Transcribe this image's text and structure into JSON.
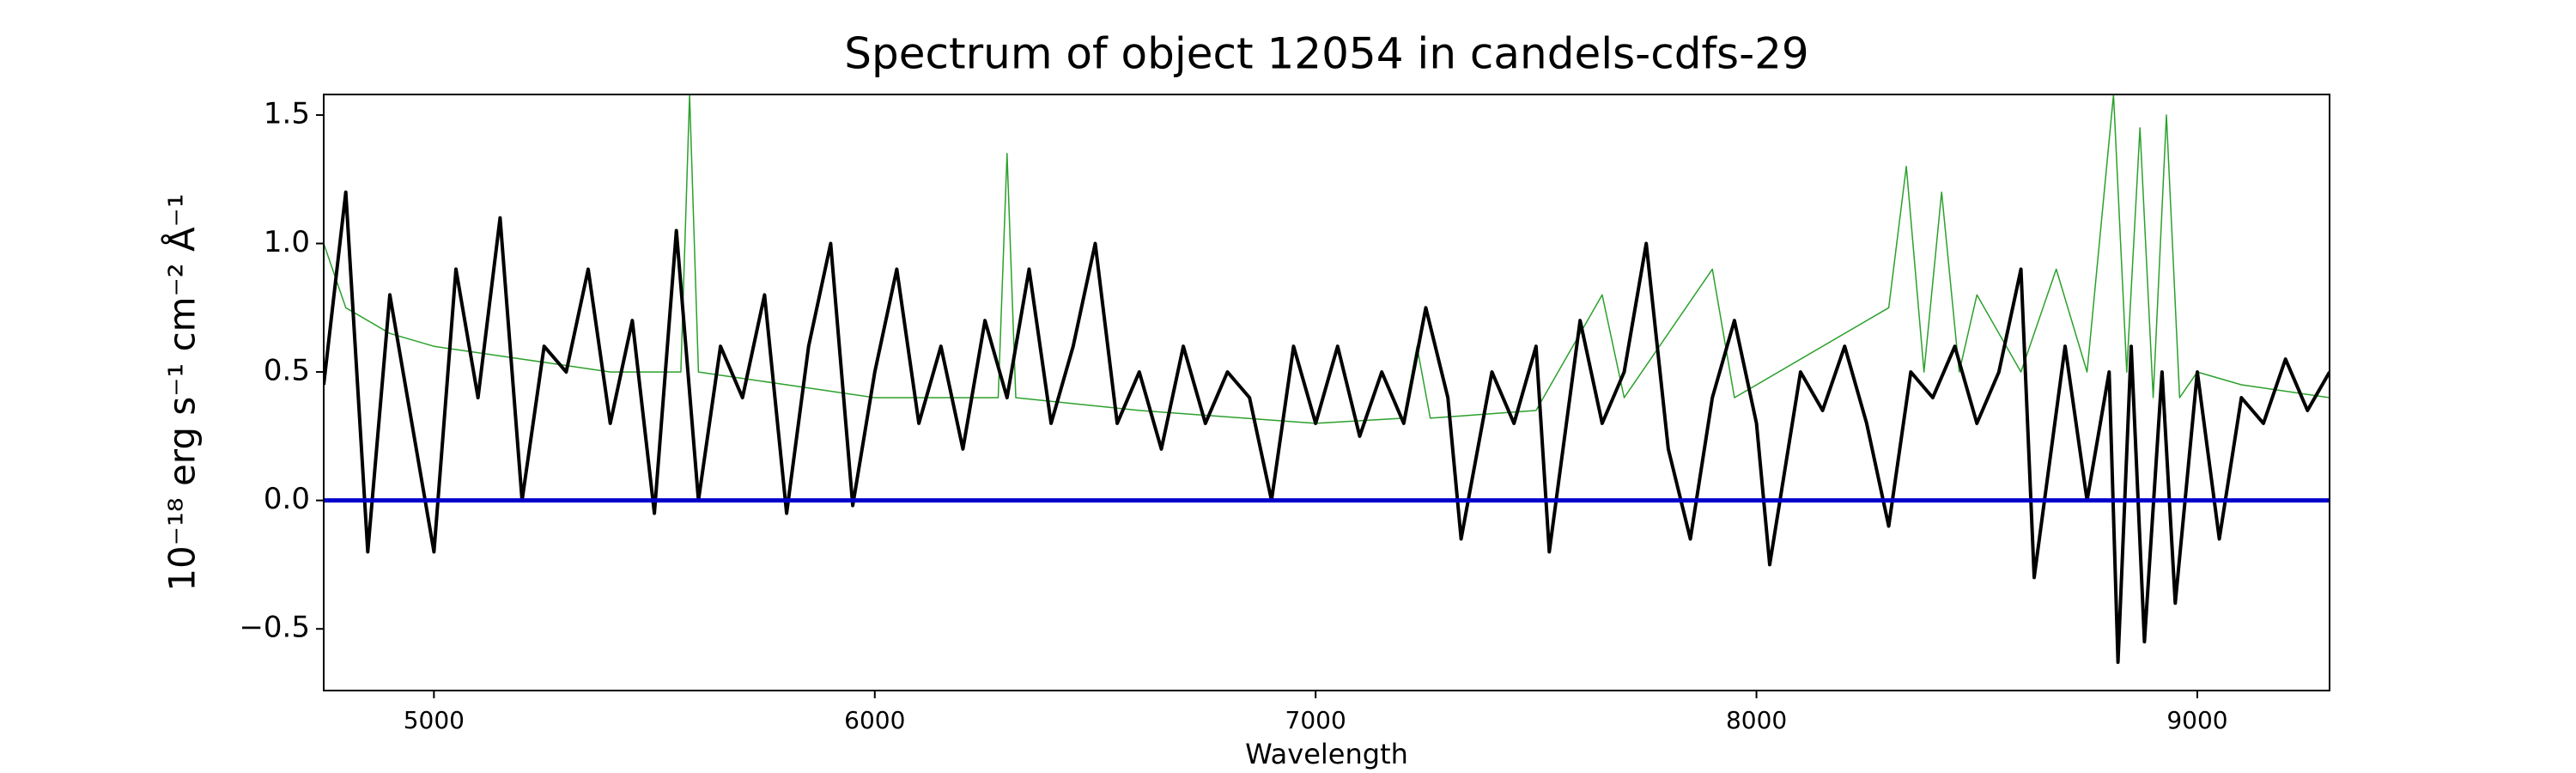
{
  "chart_data": {
    "type": "line",
    "title": "Spectrum of object 12054 in candels-cdfs-29",
    "x_label": "Wavelength",
    "y_label": "10⁻¹⁸ erg s⁻¹ cm⁻² Å⁻¹",
    "xlim": [
      4750,
      9300
    ],
    "ylim": [
      -0.74,
      1.58
    ],
    "xticks": [
      5000,
      6000,
      7000,
      8000,
      9000
    ],
    "yticks": [
      {
        "value": -0.5,
        "label": "−0.5"
      },
      {
        "value": 0,
        "label": "0.0"
      },
      {
        "value": 0.5,
        "label": "0.5"
      },
      {
        "value": 1,
        "label": "1.0"
      },
      {
        "value": 1.5,
        "label": "1.5"
      }
    ],
    "series": [
      {
        "color": "#2ca02c",
        "width": 1.5,
        "x": [
          4750,
          4800,
          4900,
          5000,
          5200,
          5400,
          5560,
          5580,
          5600,
          5800,
          6000,
          6280,
          6300,
          6320,
          6600,
          7000,
          7200,
          7230,
          7260,
          7500,
          7650,
          7700,
          7900,
          7950,
          8300,
          8340,
          8380,
          8420,
          8460,
          8500,
          8600,
          8680,
          8750,
          8810,
          8840,
          8870,
          8900,
          8930,
          8960,
          9000,
          9100,
          9300
        ],
        "values": [
          1.0,
          0.75,
          0.65,
          0.6,
          0.55,
          0.5,
          0.5,
          1.58,
          0.5,
          0.45,
          0.4,
          0.4,
          1.35,
          0.4,
          0.35,
          0.3,
          0.32,
          0.6,
          0.32,
          0.35,
          0.8,
          0.4,
          0.9,
          0.4,
          0.75,
          1.3,
          0.5,
          1.2,
          0.5,
          0.8,
          0.5,
          0.9,
          0.5,
          1.58,
          0.5,
          1.45,
          0.4,
          1.5,
          0.4,
          0.5,
          0.45,
          0.4
        ]
      },
      {
        "color": "#000000",
        "width": 4,
        "x": [
          4750,
          4800,
          4850,
          4900,
          4950,
          5000,
          5050,
          5100,
          5150,
          5200,
          5250,
          5300,
          5350,
          5400,
          5450,
          5500,
          5550,
          5600,
          5650,
          5700,
          5750,
          5800,
          5850,
          5900,
          5950,
          6000,
          6050,
          6100,
          6150,
          6200,
          6250,
          6300,
          6350,
          6400,
          6450,
          6500,
          6550,
          6600,
          6650,
          6700,
          6750,
          6800,
          6850,
          6900,
          6950,
          7000,
          7050,
          7100,
          7150,
          7200,
          7250,
          7300,
          7330,
          7400,
          7450,
          7500,
          7530,
          7600,
          7650,
          7700,
          7750,
          7800,
          7850,
          7900,
          7950,
          8000,
          8030,
          8100,
          8150,
          8200,
          8250,
          8300,
          8350,
          8400,
          8450,
          8500,
          8550,
          8600,
          8630,
          8700,
          8750,
          8800,
          8820,
          8850,
          8880,
          8920,
          8950,
          9000,
          9050,
          9100,
          9150,
          9200,
          9250,
          9300
        ],
        "values": [
          0.45,
          1.2,
          -0.2,
          0.8,
          0.3,
          -0.2,
          0.9,
          0.4,
          1.1,
          0.0,
          0.6,
          0.5,
          0.9,
          0.3,
          0.7,
          -0.05,
          1.05,
          0.0,
          0.6,
          0.4,
          0.8,
          -0.05,
          0.6,
          1.0,
          -0.02,
          0.5,
          0.9,
          0.3,
          0.6,
          0.2,
          0.7,
          0.4,
          0.9,
          0.3,
          0.6,
          1.0,
          0.3,
          0.5,
          0.2,
          0.6,
          0.3,
          0.5,
          0.4,
          0.0,
          0.6,
          0.3,
          0.6,
          0.25,
          0.5,
          0.3,
          0.75,
          0.4,
          -0.15,
          0.5,
          0.3,
          0.6,
          -0.2,
          0.7,
          0.3,
          0.5,
          1.0,
          0.2,
          -0.15,
          0.4,
          0.7,
          0.3,
          -0.25,
          0.5,
          0.35,
          0.6,
          0.3,
          -0.1,
          0.5,
          0.4,
          0.6,
          0.3,
          0.5,
          0.9,
          -0.3,
          0.6,
          0.0,
          0.5,
          -0.63,
          0.6,
          -0.55,
          0.5,
          -0.4,
          0.5,
          -0.15,
          0.4,
          0.3,
          0.55,
          0.35,
          0.5
        ]
      },
      {
        "color": "#0000cc",
        "width": 5,
        "x": [
          4750,
          9300
        ],
        "values": [
          0,
          0
        ]
      }
    ]
  }
}
